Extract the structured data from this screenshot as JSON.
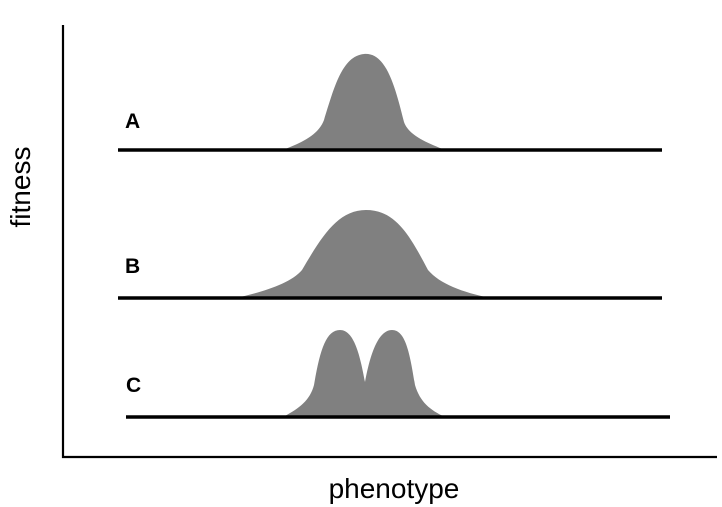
{
  "axes": {
    "y_label": "fitness",
    "x_label": "phenotype"
  },
  "panels": [
    {
      "label": "A",
      "shape": "narrow-peak"
    },
    {
      "label": "B",
      "shape": "broad-peak"
    },
    {
      "label": "C",
      "shape": "double-peak"
    }
  ],
  "colors": {
    "curve_fill": "#808080",
    "line": "#000000",
    "background": "#ffffff"
  }
}
